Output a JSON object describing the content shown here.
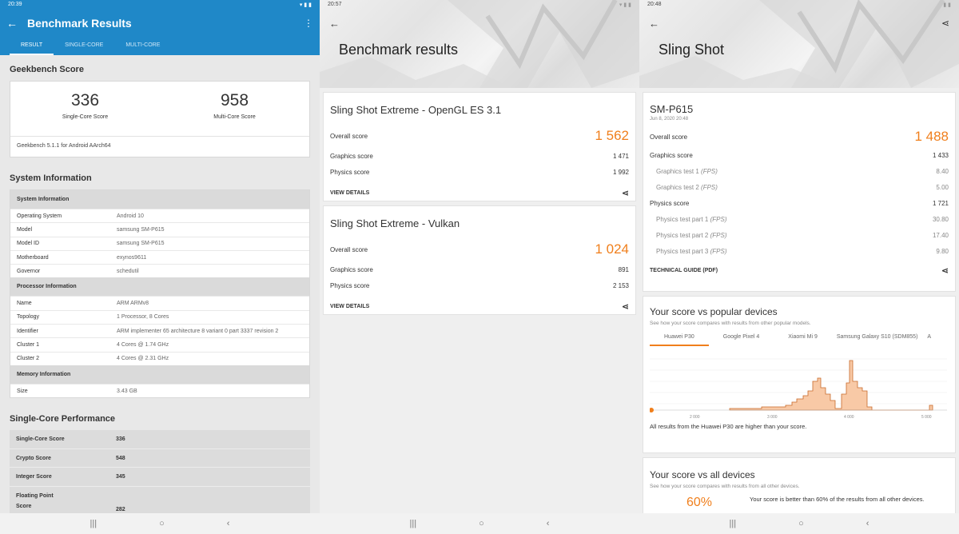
{
  "geekbench": {
    "status_time": "20:39",
    "title": "Benchmark Results",
    "tabs": [
      "RESULT",
      "SINGLE-CORE",
      "MULTI-CORE"
    ],
    "score_heading": "Geekbench Score",
    "single_score": "336",
    "single_label": "Single-Core Score",
    "multi_score": "958",
    "multi_label": "Multi-Core Score",
    "version": "Geekbench 5.1.1 for Android AArch64",
    "sysinfo_heading": "System Information",
    "sections": [
      {
        "header": "System Information",
        "rows": [
          {
            "k": "Operating System",
            "v": "Android 10"
          },
          {
            "k": "Model",
            "v": "samsung SM-P615"
          },
          {
            "k": "Model ID",
            "v": "samsung SM-P615"
          },
          {
            "k": "Motherboard",
            "v": "exynos9611"
          },
          {
            "k": "Governor",
            "v": "schedutil"
          }
        ]
      },
      {
        "header": "Processor Information",
        "rows": [
          {
            "k": "Name",
            "v": "ARM ARMv8"
          },
          {
            "k": "Topology",
            "v": "1 Processor, 8 Cores"
          },
          {
            "k": "Identifier",
            "v": "ARM implementer 65 architecture 8 variant 0 part 3337 revision 2"
          },
          {
            "k": "Cluster 1",
            "v": "4 Cores @ 1.74 GHz"
          },
          {
            "k": "Cluster 2",
            "v": "4 Cores @ 2.31 GHz"
          }
        ]
      },
      {
        "header": "Memory Information",
        "rows": [
          {
            "k": "Size",
            "v": "3.43 GB"
          }
        ]
      }
    ],
    "perf_heading": "Single-Core Performance",
    "perf": [
      {
        "k": "Single-Core Score",
        "v": "336"
      },
      {
        "k": "Crypto Score",
        "v": "548"
      },
      {
        "k": "Integer Score",
        "v": "345"
      },
      {
        "k": "Floating Point",
        "k2": "Score",
        "v": "282"
      }
    ]
  },
  "results": {
    "status_time": "20:57",
    "title": "Benchmark results",
    "cards": [
      {
        "name": "Sling Shot Extreme - OpenGL ES 3.1",
        "overall_label": "Overall score",
        "overall": "1 562",
        "graphics_label": "Graphics score",
        "graphics": "1 471",
        "physics_label": "Physics score",
        "physics": "1 992",
        "link": "VIEW DETAILS"
      },
      {
        "name": "Sling Shot Extreme - Vulkan",
        "overall_label": "Overall score",
        "overall": "1 024",
        "graphics_label": "Graphics score",
        "graphics": "891",
        "physics_label": "Physics score",
        "physics": "2 153",
        "link": "VIEW DETAILS"
      }
    ]
  },
  "slingshot": {
    "status_time": "20:48",
    "title": "Sling Shot",
    "device": "SM-P615",
    "date": "Jun 8, 2020 20:48",
    "overall_label": "Overall score",
    "overall": "1 488",
    "graphics_label": "Graphics score",
    "graphics": "1 433",
    "gt1_label": "Graphics test 1",
    "gt1": "8.40",
    "gt2_label": "Graphics test 2",
    "gt2": "5.00",
    "physics_label": "Physics score",
    "physics": "1 721",
    "pt1_label": "Physics test part 1",
    "pt1": "30.80",
    "pt2_label": "Physics test part 2",
    "pt2": "17.40",
    "pt3_label": "Physics test part 3",
    "pt3": "9.80",
    "fps": "(FPS)",
    "guide": "TECHNICAL GUIDE (PDF)",
    "popular_title": "Your score vs popular devices",
    "popular_sub": "See how your score compares with results from other popular models.",
    "popular_tabs": [
      "Huawei P30",
      "Google Pixel 4",
      "Xiaomi Mi 9",
      "Samsung Galaxy S10 (SDM855)",
      "A"
    ],
    "axis_ticks": [
      "2 000",
      "3 000",
      "4 000",
      "5 000"
    ],
    "popular_note": "All results from the Huawei P30 are higher than your score.",
    "all_title": "Your score vs all devices",
    "all_sub": "See how your score compares with results from all other devices.",
    "all_pct": "60%",
    "all_note": "Your score is better than 60% of the results from all other devices."
  },
  "nav": {
    "recent": "|||",
    "home": "○",
    "back": "‹"
  },
  "icons": {
    "back": "arrow-left-icon",
    "share": "share-icon",
    "more": "more-vert-icon"
  },
  "colors": {
    "geekbench_blue": "#1f88c8",
    "score_orange": "#f07f1c"
  }
}
